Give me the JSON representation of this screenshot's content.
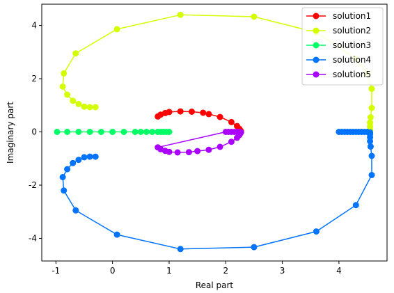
{
  "chart_data": {
    "type": "line",
    "title": "",
    "xlabel": "Real part",
    "ylabel": "Imaginary part",
    "xlim": [
      -1.25,
      4.85
    ],
    "ylim": [
      -4.85,
      4.8
    ],
    "xticks": [
      -1,
      0,
      1,
      2,
      3,
      4
    ],
    "yticks": [
      -4,
      -2,
      0,
      2,
      4
    ],
    "grid": false,
    "legend_position": "top-right",
    "series": [
      {
        "name": "solution1",
        "color": "#ff0000",
        "points": [
          [
            0.8,
            0.58
          ],
          [
            0.85,
            0.65
          ],
          [
            0.93,
            0.71
          ],
          [
            1.0,
            0.75
          ],
          [
            1.2,
            0.77
          ],
          [
            1.4,
            0.76
          ],
          [
            1.6,
            0.72
          ],
          [
            1.7,
            0.67
          ],
          [
            1.9,
            0.56
          ],
          [
            2.1,
            0.37
          ],
          [
            2.2,
            0.22
          ],
          [
            2.24,
            0.12
          ],
          [
            2.26,
            0.05
          ],
          [
            2.27,
            0.02
          ]
        ]
      },
      {
        "name": "solution2",
        "color": "#d4ff00",
        "points": [
          [
            -0.3,
            0.93
          ],
          [
            -0.4,
            0.93
          ],
          [
            -0.5,
            0.95
          ],
          [
            -0.6,
            1.05
          ],
          [
            -0.7,
            1.17
          ],
          [
            -0.8,
            1.4
          ],
          [
            -0.88,
            1.7
          ],
          [
            -0.86,
            2.2
          ],
          [
            -0.65,
            2.95
          ],
          [
            0.08,
            3.86
          ],
          [
            1.2,
            4.4
          ],
          [
            2.5,
            4.33
          ],
          [
            3.6,
            3.74
          ],
          [
            4.3,
            2.75
          ],
          [
            4.5,
            2.2
          ],
          [
            4.58,
            1.62
          ],
          [
            4.58,
            0.9
          ],
          [
            4.56,
            0.55
          ],
          [
            4.55,
            0.35
          ],
          [
            4.55,
            0.2
          ],
          [
            4.55,
            0.08
          ],
          [
            4.55,
            0.02
          ]
        ]
      },
      {
        "name": "solution3",
        "color": "#00ff66",
        "points": [
          [
            -0.98,
            0.0
          ],
          [
            -0.8,
            0.0
          ],
          [
            -0.6,
            0.0
          ],
          [
            -0.4,
            0.0
          ],
          [
            -0.2,
            0.0
          ],
          [
            0.0,
            0.0
          ],
          [
            0.2,
            0.0
          ],
          [
            0.4,
            0.0
          ],
          [
            0.5,
            0.0
          ],
          [
            0.6,
            0.0
          ],
          [
            0.7,
            0.0
          ],
          [
            0.8,
            0.0
          ],
          [
            0.85,
            0.0
          ],
          [
            0.9,
            0.0
          ],
          [
            0.95,
            0.0
          ],
          [
            1.0,
            0.0
          ]
        ]
      },
      {
        "name": "solution4",
        "color": "#0073ff",
        "points": [
          [
            4.0,
            0.0
          ],
          [
            4.05,
            0.0
          ],
          [
            4.1,
            0.0
          ],
          [
            4.15,
            0.0
          ],
          [
            4.2,
            0.0
          ],
          [
            4.25,
            0.0
          ],
          [
            4.3,
            0.0
          ],
          [
            4.35,
            0.0
          ],
          [
            4.4,
            0.0
          ],
          [
            4.45,
            0.0
          ],
          [
            4.5,
            0.0
          ],
          [
            4.55,
            -0.02
          ],
          [
            4.55,
            -0.08
          ],
          [
            4.55,
            -0.2
          ],
          [
            4.55,
            -0.35
          ],
          [
            4.56,
            -0.55
          ],
          [
            4.58,
            -0.9
          ],
          [
            4.58,
            -1.62
          ],
          [
            4.3,
            -2.75
          ],
          [
            3.6,
            -3.74
          ],
          [
            2.5,
            -4.33
          ],
          [
            1.2,
            -4.4
          ],
          [
            0.08,
            -3.86
          ],
          [
            -0.65,
            -2.95
          ],
          [
            -0.86,
            -2.2
          ],
          [
            -0.88,
            -1.7
          ],
          [
            -0.8,
            -1.4
          ],
          [
            -0.7,
            -1.17
          ],
          [
            -0.6,
            -1.05
          ],
          [
            -0.5,
            -0.95
          ],
          [
            -0.4,
            -0.93
          ],
          [
            -0.3,
            -0.93
          ]
        ]
      },
      {
        "name": "solution5",
        "color": "#aa00ff",
        "points": [
          [
            2.27,
            -0.02
          ],
          [
            2.26,
            -0.05
          ],
          [
            2.24,
            -0.12
          ],
          [
            2.2,
            -0.22
          ],
          [
            2.1,
            -0.37
          ],
          [
            1.9,
            -0.56
          ],
          [
            1.7,
            -0.67
          ],
          [
            1.5,
            -0.72
          ],
          [
            1.35,
            -0.76
          ],
          [
            1.15,
            -0.77
          ],
          [
            1.0,
            -0.75
          ],
          [
            0.93,
            -0.71
          ],
          [
            0.85,
            -0.65
          ],
          [
            0.8,
            -0.58
          ],
          [
            2.0,
            0.0
          ],
          [
            2.05,
            0.0
          ],
          [
            2.1,
            0.0
          ],
          [
            2.15,
            0.0
          ],
          [
            2.2,
            0.0
          ],
          [
            2.25,
            0.0
          ]
        ]
      }
    ]
  }
}
